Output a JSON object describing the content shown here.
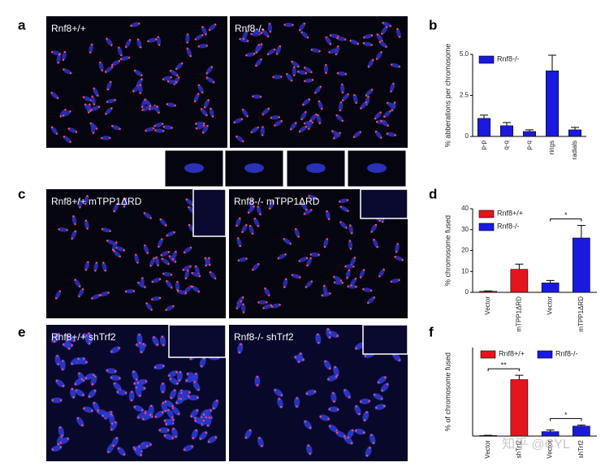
{
  "panels": {
    "letters": [
      "a",
      "b",
      "c",
      "d",
      "e",
      "f"
    ],
    "image_labels": [
      "Rnf8+/+",
      "Rnf8-/-",
      "Rnf8+/+ mTPP1ΔRD",
      "Rnf8-/- mTPP1ΔRD",
      "Rnf8+/+ shTrf2",
      "Rnf8-/- shTrf2"
    ],
    "watermark": "知乎 @CYL"
  },
  "chart_data": [
    {
      "type": "bar",
      "ylabel": "% abberations per chromosome",
      "categories": [
        "p-p",
        "q-q",
        "p-q",
        "rings",
        "radials"
      ],
      "series": [
        {
          "name": "Rnf8-/-",
          "color": "#1a1adf",
          "values": [
            1.1,
            0.65,
            0.3,
            4.0,
            0.4
          ],
          "errors": [
            0.2,
            0.2,
            0.1,
            0.95,
            0.15
          ]
        }
      ],
      "ylim": [
        0,
        5
      ],
      "yticks": [
        0,
        2.5,
        {
          "value": 5,
          "label": "5.0"
        }
      ],
      "legend_loc": "upper left"
    },
    {
      "type": "bar",
      "ylabel": "% chromosome fused",
      "categories": [
        "Vector",
        "mTPP1ΔRD",
        "Vector",
        "mTPP1ΔRD"
      ],
      "series": [
        {
          "name": "Rnf8+/+",
          "color": "#e4161b",
          "values": [
            0.5,
            11,
            null,
            null
          ],
          "errors": [
            0.2,
            2.5,
            null,
            null
          ]
        },
        {
          "name": "Rnf8-/-",
          "color": "#1a1adf",
          "values": [
            null,
            null,
            4.5,
            26
          ],
          "errors": [
            null,
            null,
            1.2,
            6
          ]
        }
      ],
      "ylim": [
        0,
        40
      ],
      "yticks": [
        0,
        10,
        20,
        30,
        40
      ],
      "legend_loc": "upper left",
      "annotations": [
        {
          "text": "*",
          "between": [
            2,
            3
          ]
        }
      ]
    },
    {
      "type": "bar",
      "ylabel": "% of chromosome fused",
      "categories": [
        "Vector",
        "shTrf2",
        "Vector",
        "shTrf2"
      ],
      "series": [
        {
          "name": "Rnf8+/+",
          "color": "#e4161b",
          "values": [
            0.5,
            51,
            null,
            null
          ],
          "errors": [
            0.2,
            4,
            null,
            null
          ]
        },
        {
          "name": "Rnf8-/-",
          "color": "#1a1adf",
          "values": [
            null,
            null,
            4,
            9
          ],
          "errors": [
            null,
            null,
            1.5,
            1
          ]
        }
      ],
      "ylim": [
        0,
        80
      ],
      "legend_loc": "upper center",
      "annotations": [
        {
          "text": "**",
          "between": [
            0,
            1
          ]
        },
        {
          "text": "*",
          "between": [
            2,
            3
          ]
        }
      ]
    }
  ]
}
